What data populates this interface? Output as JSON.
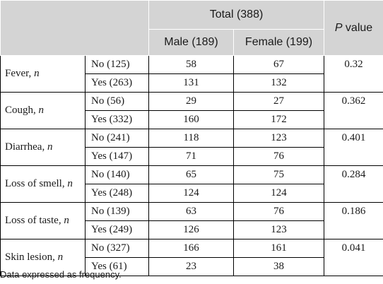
{
  "header": {
    "total": "Total (388)",
    "p_letter": "P",
    "p_rest": " value",
    "male": "Male (189)",
    "female": "Female (199)"
  },
  "rows": [
    {
      "name": "Fever, ",
      "n": "n",
      "p": "0.32",
      "levels": [
        {
          "label": "No (125)",
          "male": "58",
          "female": "67"
        },
        {
          "label": "Yes (263)",
          "male": "131",
          "female": "132"
        }
      ]
    },
    {
      "name": "Cough, ",
      "n": "n",
      "p": "0.362",
      "levels": [
        {
          "label": "No (56)",
          "male": "29",
          "female": "27"
        },
        {
          "label": "Yes (332)",
          "male": "160",
          "female": "172"
        }
      ]
    },
    {
      "name": "Diarrhea, ",
      "n": "n",
      "p": "0.401",
      "levels": [
        {
          "label": "No (241)",
          "male": "118",
          "female": "123"
        },
        {
          "label": "Yes (147)",
          "male": "71",
          "female": "76"
        }
      ]
    },
    {
      "name": "Loss of smell, ",
      "n": "n",
      "p": "0.284",
      "levels": [
        {
          "label": "No (140)",
          "male": "65",
          "female": "75"
        },
        {
          "label": "Yes (248)",
          "male": "124",
          "female": "124"
        }
      ]
    },
    {
      "name": "Loss of taste, ",
      "n": "n",
      "p": "0.186",
      "levels": [
        {
          "label": "No (139)",
          "male": "63",
          "female": "76"
        },
        {
          "label": "Yes (249)",
          "male": "126",
          "female": "123"
        }
      ]
    },
    {
      "name": "Skin lesion, ",
      "n": "n",
      "p": "0.041",
      "levels": [
        {
          "label": "No (327)",
          "male": "166",
          "female": "161"
        },
        {
          "label": "Yes (61)",
          "male": "23",
          "female": "38"
        }
      ]
    }
  ],
  "footnote": "Data expressed as frequency."
}
